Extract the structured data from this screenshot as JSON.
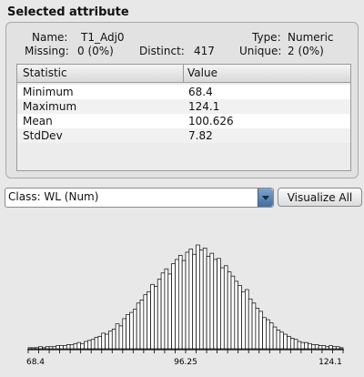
{
  "panel": {
    "title": "Selected attribute",
    "name_label": "Name:",
    "name_value": "T1_Adj0",
    "type_label": "Type:",
    "type_value": "Numeric",
    "missing_label": "Missing:",
    "missing_value": "0 (0%)",
    "distinct_label": "Distinct:",
    "distinct_value": "417",
    "unique_label": "Unique:",
    "unique_value": "2 (0%)"
  },
  "stats_table": {
    "headers": [
      "Statistic",
      "Value"
    ],
    "rows": [
      {
        "statistic": "Minimum",
        "value": "68.4"
      },
      {
        "statistic": "Maximum",
        "value": "124.1"
      },
      {
        "statistic": "Mean",
        "value": "100.626"
      },
      {
        "statistic": "StdDev",
        "value": "7.82"
      }
    ]
  },
  "class_select": {
    "selected": "Class: WL (Num)"
  },
  "visualize_all_label": "Visualize All",
  "colors": {
    "bar_fill": "#ffffff",
    "bar_stroke": "#000000",
    "background": "#e8e8e8",
    "combo_arrow": "#4a78ae"
  },
  "chart_data": {
    "type": "bar",
    "tick_labels": [
      "68.4",
      "96.25",
      "124.1"
    ],
    "xlim": [
      68.4,
      124.1
    ],
    "ylim": [
      0,
      1
    ],
    "values": [
      0.01,
      0.01,
      0.01,
      0.02,
      0.01,
      0.02,
      0.02,
      0.02,
      0.03,
      0.03,
      0.03,
      0.04,
      0.04,
      0.05,
      0.06,
      0.05,
      0.07,
      0.08,
      0.09,
      0.11,
      0.12,
      0.15,
      0.14,
      0.17,
      0.19,
      0.24,
      0.22,
      0.29,
      0.33,
      0.35,
      0.38,
      0.44,
      0.47,
      0.52,
      0.55,
      0.62,
      0.6,
      0.67,
      0.73,
      0.77,
      0.72,
      0.82,
      0.86,
      0.9,
      0.85,
      0.93,
      0.96,
      0.91,
      1.0,
      0.95,
      0.97,
      0.89,
      0.92,
      0.86,
      0.87,
      0.78,
      0.8,
      0.74,
      0.7,
      0.65,
      0.61,
      0.55,
      0.57,
      0.48,
      0.44,
      0.39,
      0.36,
      0.3,
      0.28,
      0.25,
      0.21,
      0.18,
      0.16,
      0.14,
      0.12,
      0.1,
      0.09,
      0.07,
      0.06,
      0.06,
      0.05,
      0.04,
      0.04,
      0.03,
      0.03,
      0.02,
      0.03,
      0.02,
      0.02,
      0.01
    ]
  }
}
